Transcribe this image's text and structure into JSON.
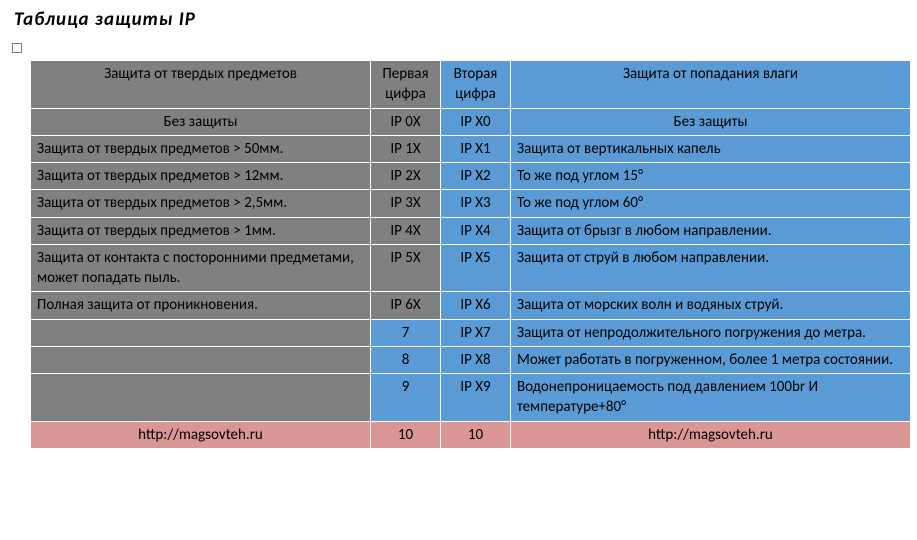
{
  "title": "Таблица защиты IP",
  "colors": {
    "grey": "#808080",
    "blue": "#5b9bd5",
    "pink": "#d99694",
    "border": "#ffffff"
  },
  "columns": {
    "solids": "Защита от твердых предметов",
    "first_digit": "Первая цифра",
    "second_digit": "Вторая цифра",
    "liquids": "Защита от попадания влаги"
  },
  "header2": {
    "no_prot_solid": "Без защиты",
    "ip0x": "IP 0X",
    "ipx0": "IP X0",
    "no_prot_liquid": "Без защиты"
  },
  "rows": [
    {
      "s": "Защита от твердых предметов > 50мм.",
      "d1": "IP 1X",
      "d2": "IP X1",
      "l": "Защита от вертикальных капель"
    },
    {
      "s": "Защита от твердых предметов > 12мм.",
      "d1": "IP 2X",
      "d2": "IP X2",
      "l": "То же под углом 15°"
    },
    {
      "s": "Защита от твердых предметов > 2,5мм.",
      "d1": "IP 3X",
      "d2": "IP X3",
      "l": "То же под углом 60°"
    },
    {
      "s": "Защита от твердых предметов > 1мм.",
      "d1": "IP 4X",
      "d2": "IP X4",
      "l": "Защита от брызг в любом направлении."
    },
    {
      "s": "Защита от контакта с посторонними предметами, может попадать пыль.",
      "d1": "IP 5X",
      "d2": "IP X5",
      "l": "Защита от струй в любом направлении."
    },
    {
      "s": "Полная защита от проникновения.",
      "d1": "IP 6X",
      "d2": "IP X6",
      "l": "Защита от морских волн и водяных струй."
    },
    {
      "s": "",
      "d1": "7",
      "d2": "IP X7",
      "l": "Защита от непродолжительного погружения до метра."
    },
    {
      "s": "",
      "d1": "8",
      "d2": "IP X8",
      "l": "Может работать в погруженном, более 1 метра состоянии."
    },
    {
      "s": "",
      "d1": "9",
      "d2": "IP X9",
      "l": "Водонепроницаемость под давлением 100br И температуре+80°"
    }
  ],
  "footer": {
    "url_left": "http://magsovteh.ru",
    "n1": "10",
    "n2": "10",
    "url_right": "http://magsovteh.ru"
  }
}
